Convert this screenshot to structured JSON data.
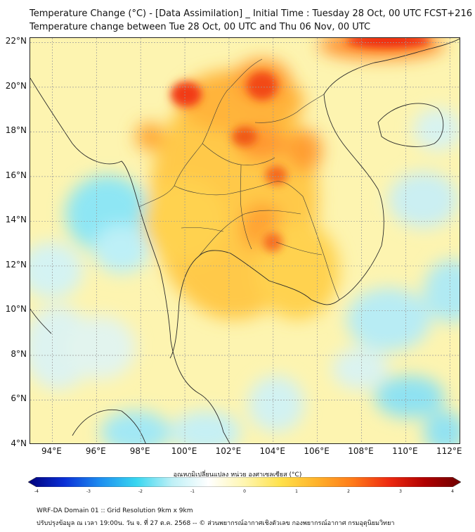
{
  "header": {
    "title_line1": "Temperature Change (°C) - [Data Assimilation] _ Initial Time : Tuesday 28 Oct, 00 UTC FCST+216",
    "title_line2": "Temperature change between Tue 28 Oct, 00 UTC and Thu 06 Nov, 00 UTC"
  },
  "map": {
    "lat_labels": [
      "22°N",
      "20°N",
      "18°N",
      "16°N",
      "14°N",
      "12°N",
      "10°N",
      "8°N",
      "6°N",
      "4°N"
    ],
    "lon_labels": [
      "94°E",
      "96°E",
      "98°E",
      "100°E",
      "102°E",
      "104°E",
      "106°E",
      "108°E",
      "110°E",
      "112°E"
    ],
    "lat_range": [
      4,
      22.2
    ],
    "lon_range": [
      93,
      112.5
    ],
    "background_color": "#fdf4b0",
    "grid_color": "#9a9a9a"
  },
  "colorbar": {
    "title": "อุณหภูมิเปลี่ยนแปลง หน่วย องศาเซลเซียส (°C)",
    "ticks": [
      "-4",
      "-3",
      "-2",
      "-1",
      "0",
      "1",
      "2",
      "3",
      "4"
    ],
    "range": [
      -4,
      4
    ],
    "colors": [
      "#00007a",
      "#0a2fd6",
      "#1d8ef0",
      "#38d6f0",
      "#bff0f6",
      "#ffffff",
      "#fff6b0",
      "#ffe14a",
      "#ffb22a",
      "#ff7a18",
      "#ee2a10",
      "#b00000",
      "#6e0000"
    ]
  },
  "footer": {
    "line1": "WRF-DA Domain 01 :: Grid Resolution 9km x 9km",
    "line2": "ปรับปรุงข้อมูล ณ เวลา 19:00น. วัน จ. ที่ 27 ต.ค. 2568 -- © ส่วนพยากรณ์อากาศเชิงตัวเลข กองพยากรณ์อากาศ กรมอุตุนิยมวิทยา"
  }
}
